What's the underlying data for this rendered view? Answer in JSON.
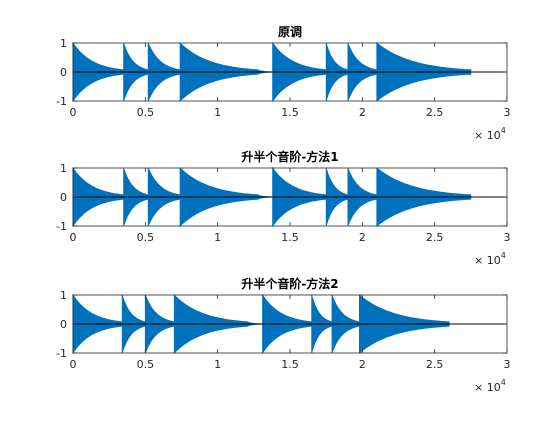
{
  "colors": {
    "signal": "#0072BD",
    "axis": "#262626",
    "background": "#ffffff",
    "figure_background": "#ffffff"
  },
  "chart_data": [
    {
      "type": "line",
      "title": "原调",
      "xlim": [
        0,
        30000
      ],
      "ylim": [
        -1,
        1
      ],
      "xticks": [
        "0",
        "0.5",
        "1",
        "1.5",
        "2",
        "2.5",
        "3"
      ],
      "yticks": [
        "-1",
        "0",
        "1"
      ],
      "x_multiplier": {
        "base": "× 10",
        "exponent": "4"
      },
      "grid": false,
      "decay_envelope_segments": [
        {
          "start": 0,
          "end": 3500,
          "peak": 1
        },
        {
          "start": 3500,
          "end": 5200,
          "peak": 1
        },
        {
          "start": 5200,
          "end": 7400,
          "peak": 1
        },
        {
          "start": 7400,
          "end": 12800,
          "peak": 1
        },
        {
          "start": 12800,
          "end": 13800,
          "peak": 0.06
        },
        {
          "start": 13800,
          "end": 17500,
          "peak": 1
        },
        {
          "start": 17500,
          "end": 19000,
          "peak": 1
        },
        {
          "start": 19000,
          "end": 21000,
          "peak": 1
        },
        {
          "start": 21000,
          "end": 27500,
          "peak": 1
        }
      ]
    },
    {
      "type": "line",
      "title": "升半个音阶-方法1",
      "xlim": [
        0,
        30000
      ],
      "ylim": [
        -1,
        1
      ],
      "xticks": [
        "0",
        "0.5",
        "1",
        "1.5",
        "2",
        "2.5",
        "3"
      ],
      "yticks": [
        "-1",
        "0",
        "1"
      ],
      "x_multiplier": {
        "base": "× 10",
        "exponent": "4"
      },
      "grid": false,
      "decay_envelope_segments": [
        {
          "start": 0,
          "end": 3500,
          "peak": 1
        },
        {
          "start": 3500,
          "end": 5200,
          "peak": 1
        },
        {
          "start": 5200,
          "end": 7400,
          "peak": 1
        },
        {
          "start": 7400,
          "end": 12800,
          "peak": 1
        },
        {
          "start": 12800,
          "end": 13800,
          "peak": 0.06
        },
        {
          "start": 13800,
          "end": 17500,
          "peak": 1
        },
        {
          "start": 17500,
          "end": 19000,
          "peak": 1
        },
        {
          "start": 19000,
          "end": 21000,
          "peak": 1
        },
        {
          "start": 21000,
          "end": 27500,
          "peak": 1
        }
      ]
    },
    {
      "type": "line",
      "title": "升半个音阶-方法2",
      "xlim": [
        0,
        30000
      ],
      "ylim": [
        -1,
        1
      ],
      "xticks": [
        "0",
        "0.5",
        "1",
        "1.5",
        "2",
        "2.5",
        "3"
      ],
      "yticks": [
        "-1",
        "0",
        "1"
      ],
      "x_multiplier": {
        "base": "× 10",
        "exponent": "4"
      },
      "grid": false,
      "decay_envelope_segments": [
        {
          "start": 0,
          "end": 3400,
          "peak": 1
        },
        {
          "start": 3400,
          "end": 5000,
          "peak": 1
        },
        {
          "start": 5000,
          "end": 7000,
          "peak": 1
        },
        {
          "start": 7000,
          "end": 12100,
          "peak": 1
        },
        {
          "start": 12100,
          "end": 13100,
          "peak": 0.06
        },
        {
          "start": 13100,
          "end": 16500,
          "peak": 1
        },
        {
          "start": 16500,
          "end": 17900,
          "peak": 1
        },
        {
          "start": 17900,
          "end": 19800,
          "peak": 1
        },
        {
          "start": 19800,
          "end": 26000,
          "peak": 1
        }
      ]
    }
  ]
}
